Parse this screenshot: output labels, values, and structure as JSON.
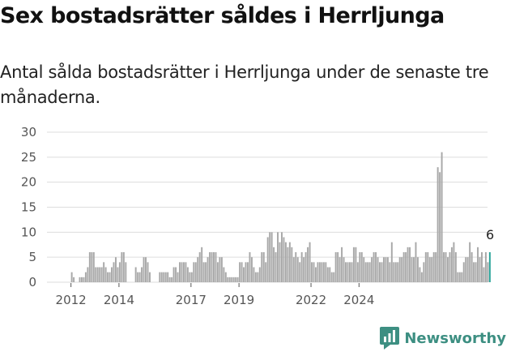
{
  "title": "Sex bostadsrätter såldes i Herrljunga",
  "subtitle": "Antal sålda bostadsrätter i Herrljunga under de senaste tre månaderna.",
  "brand": {
    "name": "Newsworthy",
    "icon": "newsworthy-logo-icon"
  },
  "colors": {
    "bar": "#a9a9a9",
    "highlight": "#2aa59a",
    "grid": "#dddddd",
    "brand": "#3d8f82"
  },
  "chart_data": {
    "type": "bar",
    "title": "",
    "xlabel": "",
    "ylabel": "",
    "ylim": [
      0,
      30
    ],
    "y_ticks": [
      0,
      5,
      10,
      15,
      20,
      25,
      30
    ],
    "x_tick_labels": [
      "2012",
      "2014",
      "2017",
      "2019",
      "2022",
      "2024"
    ],
    "x_tick_years": [
      2012,
      2014,
      2017,
      2019,
      2022,
      2024
    ],
    "grid": true,
    "legend": "none",
    "start_year": 2011,
    "start_month": 1,
    "highlight_label": "6",
    "values": [
      null,
      null,
      null,
      null,
      null,
      null,
      null,
      null,
      null,
      null,
      null,
      null,
      2,
      1,
      null,
      null,
      1,
      1,
      1,
      2,
      3,
      6,
      6,
      6,
      3,
      3,
      3,
      3,
      4,
      3,
      2,
      2,
      3,
      4,
      5,
      3,
      4,
      6,
      6,
      4,
      null,
      null,
      null,
      null,
      3,
      2,
      2,
      3,
      5,
      5,
      4,
      2,
      null,
      null,
      null,
      null,
      2,
      2,
      2,
      2,
      2,
      1,
      1,
      3,
      3,
      2,
      4,
      4,
      4,
      4,
      3,
      2,
      2,
      4,
      4,
      5,
      6,
      7,
      4,
      4,
      5,
      6,
      6,
      6,
      6,
      4,
      5,
      5,
      3,
      2,
      1,
      1,
      1,
      1,
      1,
      1,
      4,
      4,
      3,
      4,
      4,
      6,
      5,
      3,
      2,
      2,
      3,
      6,
      6,
      4,
      9,
      10,
      10,
      7,
      6,
      10,
      8,
      10,
      9,
      8,
      7,
      8,
      7,
      5,
      6,
      5,
      4,
      6,
      5,
      6,
      7,
      8,
      4,
      4,
      3,
      4,
      4,
      4,
      4,
      4,
      3,
      3,
      2,
      2,
      6,
      6,
      5,
      7,
      5,
      4,
      4,
      4,
      4,
      7,
      7,
      4,
      6,
      6,
      5,
      4,
      4,
      4,
      5,
      6,
      6,
      5,
      4,
      4,
      5,
      5,
      5,
      4,
      8,
      4,
      4,
      4,
      5,
      5,
      6,
      6,
      7,
      7,
      5,
      5,
      8,
      5,
      3,
      2,
      4,
      6,
      6,
      5,
      5,
      6,
      6,
      23,
      22,
      26,
      6,
      6,
      5,
      6,
      7,
      8,
      6,
      2,
      2,
      2,
      4,
      5,
      5,
      8,
      6,
      4,
      4,
      7,
      5,
      6,
      3,
      6,
      4,
      6
    ]
  }
}
